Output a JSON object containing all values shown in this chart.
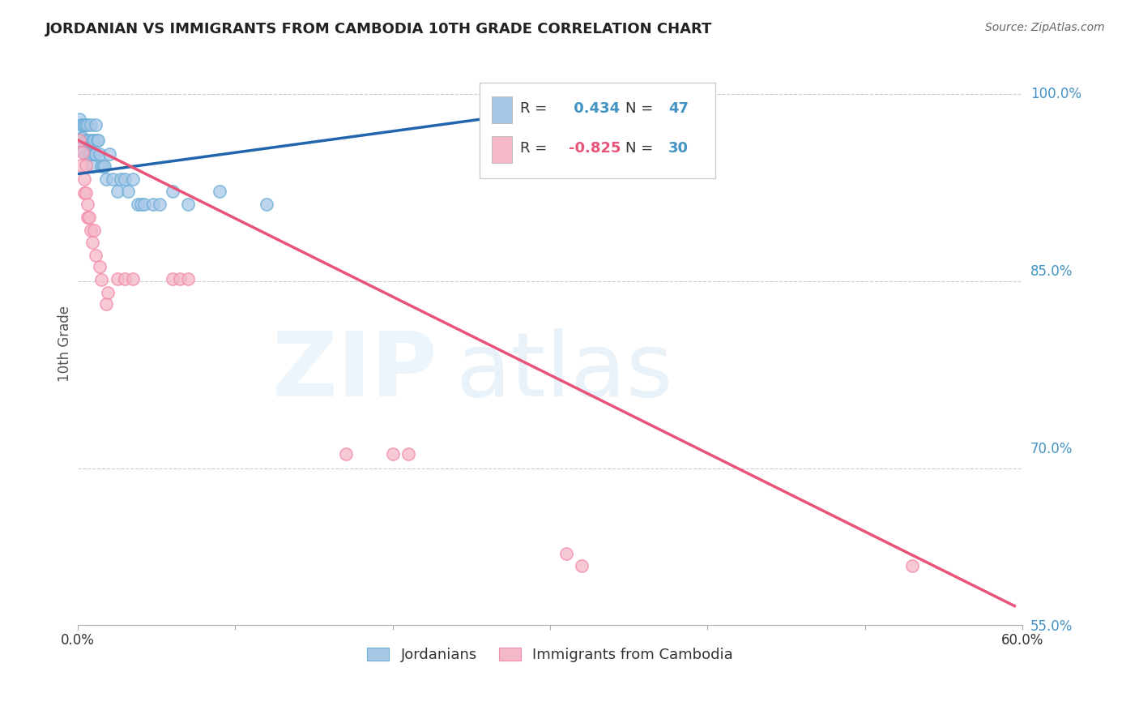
{
  "title": "JORDANIAN VS IMMIGRANTS FROM CAMBODIA 10TH GRADE CORRELATION CHART",
  "source": "Source: ZipAtlas.com",
  "ylabel": "10th Grade",
  "ylabel_right_labels": [
    "100.0%",
    "85.0%",
    "70.0%",
    "55.0%"
  ],
  "ylabel_right_values": [
    1.0,
    0.85,
    0.7,
    0.55
  ],
  "blue_R": 0.434,
  "blue_N": 47,
  "pink_R": -0.825,
  "pink_N": 30,
  "blue_label": "Jordanians",
  "pink_label": "Immigrants from Cambodia",
  "blue_color": "#a8c8e8",
  "pink_color": "#f4b8c8",
  "blue_edge_color": "#6aaed6",
  "pink_edge_color": "#f48aaa",
  "blue_line_color": "#2166ac",
  "pink_line_color": "#e8537a",
  "legend_text_color": "#333333",
  "legend_value_color": "#4393c3",
  "xmin": 0.0,
  "xmax": 0.6,
  "ymin": 0.575,
  "ymax": 1.025,
  "blue_x": [
    0.001,
    0.002,
    0.002,
    0.003,
    0.003,
    0.003,
    0.004,
    0.004,
    0.005,
    0.005,
    0.005,
    0.006,
    0.006,
    0.007,
    0.007,
    0.008,
    0.008,
    0.009,
    0.009,
    0.01,
    0.01,
    0.011,
    0.011,
    0.012,
    0.013,
    0.014,
    0.015,
    0.016,
    0.017,
    0.018,
    0.02,
    0.022,
    0.025,
    0.027,
    0.03,
    0.032,
    0.035,
    0.038,
    0.04,
    0.042,
    0.048,
    0.052,
    0.06,
    0.07,
    0.09,
    0.12,
    0.345
  ],
  "blue_y": [
    0.98,
    0.975,
    0.965,
    0.975,
    0.965,
    0.955,
    0.975,
    0.962,
    0.975,
    0.963,
    0.952,
    0.975,
    0.962,
    0.963,
    0.951,
    0.975,
    0.952,
    0.963,
    0.942,
    0.963,
    0.952,
    0.975,
    0.952,
    0.963,
    0.963,
    0.952,
    0.942,
    0.942,
    0.942,
    0.932,
    0.952,
    0.932,
    0.922,
    0.932,
    0.932,
    0.922,
    0.932,
    0.912,
    0.912,
    0.912,
    0.912,
    0.912,
    0.922,
    0.912,
    0.922,
    0.912,
    0.995
  ],
  "pink_x": [
    0.001,
    0.002,
    0.003,
    0.004,
    0.004,
    0.005,
    0.005,
    0.006,
    0.006,
    0.007,
    0.008,
    0.009,
    0.01,
    0.011,
    0.014,
    0.015,
    0.018,
    0.019,
    0.025,
    0.03,
    0.035,
    0.06,
    0.065,
    0.07,
    0.17,
    0.2,
    0.21,
    0.31,
    0.32,
    0.53
  ],
  "pink_y": [
    0.963,
    0.943,
    0.953,
    0.932,
    0.921,
    0.943,
    0.921,
    0.912,
    0.901,
    0.901,
    0.891,
    0.881,
    0.891,
    0.871,
    0.862,
    0.851,
    0.832,
    0.841,
    0.852,
    0.852,
    0.852,
    0.852,
    0.852,
    0.852,
    0.712,
    0.712,
    0.712,
    0.632,
    0.622,
    0.622
  ],
  "blue_trendline_x": [
    0.0,
    0.345
  ],
  "blue_trendline_y": [
    0.936,
    0.995
  ],
  "pink_trendline_x": [
    0.0,
    0.595
  ],
  "pink_trendline_y": [
    0.963,
    0.59
  ]
}
